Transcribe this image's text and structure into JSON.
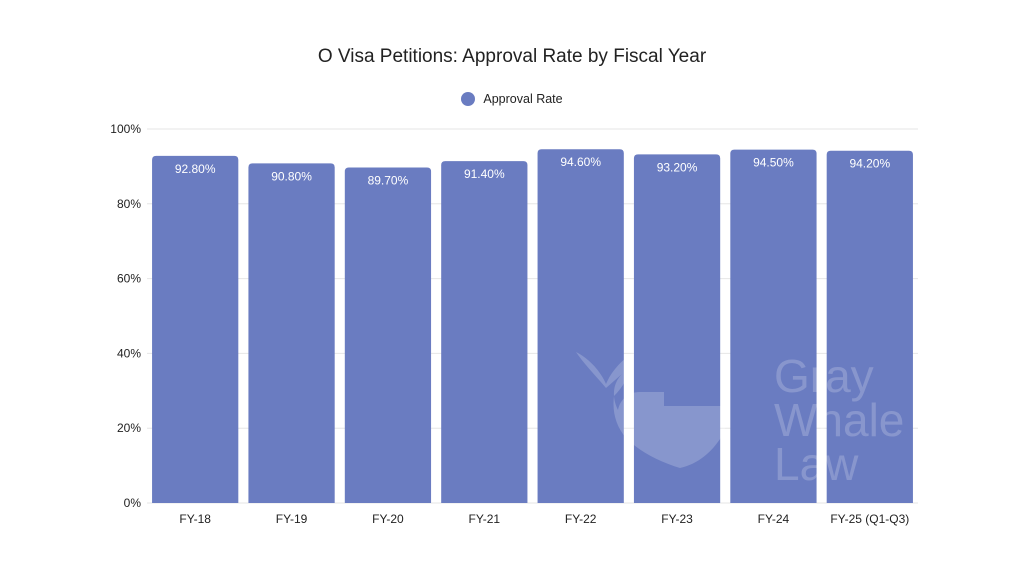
{
  "chart_data": {
    "type": "bar",
    "title": "O Visa Petitions: Approval Rate by Fiscal Year",
    "legend": [
      {
        "name": "Approval Rate",
        "color": "#6a7cc1"
      }
    ],
    "legend_position": "top",
    "categories": [
      "FY-18",
      "FY-19",
      "FY-20",
      "FY-21",
      "FY-22",
      "FY-23",
      "FY-24",
      "FY-25 (Q1-Q3)"
    ],
    "series": [
      {
        "name": "Approval Rate",
        "values": [
          92.8,
          90.8,
          89.7,
          91.4,
          94.6,
          93.2,
          94.5,
          94.2
        ]
      }
    ],
    "data_labels": [
      "92.80%",
      "90.80%",
      "89.70%",
      "91.40%",
      "94.60%",
      "93.20%",
      "94.50%",
      "94.20%"
    ],
    "y_ticks": [
      0,
      20,
      40,
      60,
      80,
      100
    ],
    "y_tick_labels": [
      "0%",
      "20%",
      "40%",
      "60%",
      "80%",
      "100%"
    ],
    "ylim": [
      0,
      100
    ],
    "xlabel": "",
    "ylabel": "",
    "grid": true
  },
  "watermark": {
    "text": "Gray Whale Law"
  },
  "colors": {
    "bar": "#6a7cc1",
    "grid": "#e6e6e6",
    "label_inside": "#ffffff",
    "text": "#222222"
  }
}
